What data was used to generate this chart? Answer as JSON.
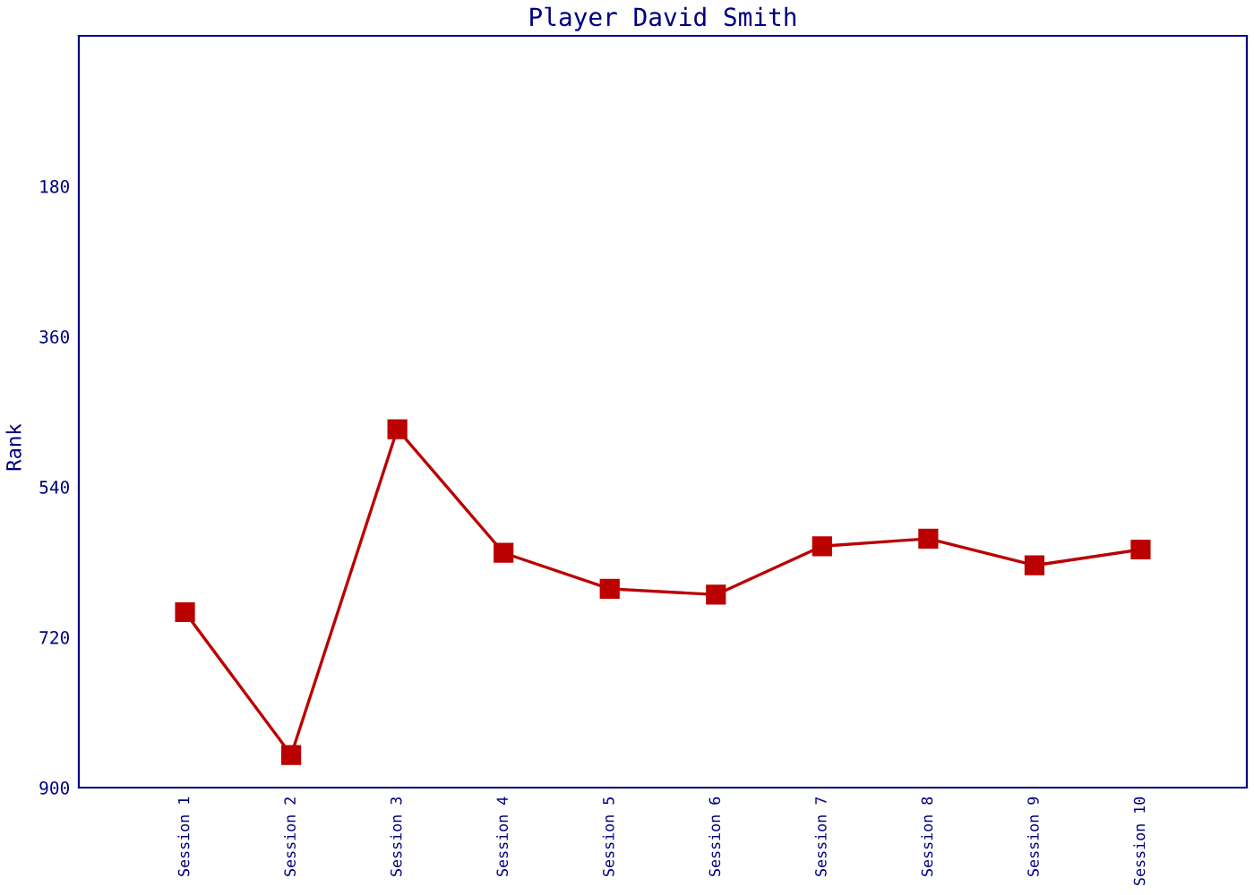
{
  "chart_data": {
    "type": "line",
    "title": "Player David Smith",
    "ylabel": "Rank",
    "categories": [
      "Session 1",
      "Session 2",
      "Session 3",
      "Session 4",
      "Session 5",
      "Session 6",
      "Session 7",
      "Session 8",
      "Session 9",
      "Session 10"
    ],
    "series": [
      {
        "color": "#bb0000",
        "values": [
          690,
          861,
          471,
          619,
          662,
          669,
          611,
          602,
          634,
          615
        ]
      }
    ],
    "ylim": [
      900,
      0
    ],
    "yticks": [
      180,
      360,
      540,
      720,
      900
    ],
    "grid": false,
    "legend": false,
    "marker": "square",
    "line_style": "solid"
  }
}
